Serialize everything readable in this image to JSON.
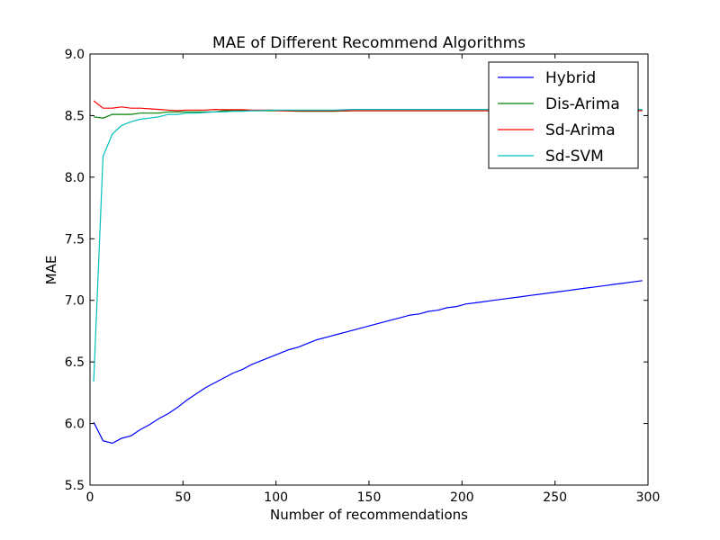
{
  "chart_data": {
    "type": "line",
    "title": "MAE of Different Recommend Algorithms",
    "xlabel": "Number of recommendations",
    "ylabel": "MAE",
    "xlim": [
      0,
      300
    ],
    "ylim": [
      5.5,
      9.0
    ],
    "xticks": [
      0,
      50,
      100,
      150,
      200,
      250,
      300
    ],
    "xtick_labels": [
      "0",
      "50",
      "100",
      "150",
      "200",
      "250",
      "300"
    ],
    "yticks": [
      5.5,
      6.0,
      6.5,
      7.0,
      7.5,
      8.0,
      8.5,
      9.0
    ],
    "ytick_labels": [
      "5.5",
      "6.0",
      "6.5",
      "7.0",
      "7.5",
      "8.0",
      "8.5",
      "9.0"
    ],
    "grid": false,
    "legend_position": "top-right",
    "series": [
      {
        "name": "Hybrid",
        "color": "#0000ff",
        "x": [
          2,
          7,
          12,
          17,
          22,
          27,
          32,
          37,
          42,
          47,
          52,
          57,
          62,
          67,
          72,
          77,
          82,
          87,
          92,
          97,
          102,
          107,
          112,
          117,
          122,
          127,
          132,
          137,
          142,
          147,
          152,
          157,
          162,
          167,
          172,
          177,
          182,
          187,
          192,
          197,
          202,
          207,
          212,
          217,
          222,
          227,
          232,
          237,
          242,
          247,
          252,
          257,
          262,
          267,
          272,
          277,
          282,
          287,
          292,
          297
        ],
        "y": [
          6.01,
          5.86,
          5.84,
          5.88,
          5.9,
          5.95,
          5.99,
          6.04,
          6.08,
          6.13,
          6.19,
          6.24,
          6.29,
          6.33,
          6.37,
          6.41,
          6.44,
          6.48,
          6.51,
          6.54,
          6.57,
          6.6,
          6.62,
          6.65,
          6.68,
          6.7,
          6.72,
          6.74,
          6.76,
          6.78,
          6.8,
          6.82,
          6.84,
          6.86,
          6.88,
          6.89,
          6.91,
          6.92,
          6.94,
          6.95,
          6.97,
          6.98,
          6.99,
          7.0,
          7.01,
          7.02,
          7.03,
          7.04,
          7.05,
          7.06,
          7.07,
          7.08,
          7.09,
          7.1,
          7.11,
          7.12,
          7.13,
          7.14,
          7.15,
          7.16
        ]
      },
      {
        "name": "Dis-Arima",
        "color": "#008000",
        "x": [
          2,
          7,
          12,
          17,
          22,
          27,
          32,
          37,
          42,
          47,
          52,
          57,
          62,
          67,
          72,
          77,
          82,
          87,
          92,
          97,
          102,
          112,
          122,
          132,
          142,
          152,
          162,
          172,
          182,
          192,
          202,
          212,
          222,
          232,
          242,
          252,
          262,
          272,
          282,
          292,
          297
        ],
        "y": [
          8.49,
          8.48,
          8.51,
          8.51,
          8.51,
          8.52,
          8.52,
          8.52,
          8.53,
          8.53,
          8.53,
          8.53,
          8.53,
          8.53,
          8.54,
          8.54,
          8.54,
          8.54,
          8.54,
          8.54,
          8.54,
          8.535,
          8.535,
          8.535,
          8.54,
          8.54,
          8.54,
          8.54,
          8.54,
          8.54,
          8.54,
          8.54,
          8.54,
          8.54,
          8.54,
          8.54,
          8.54,
          8.54,
          8.54,
          8.54,
          8.54
        ]
      },
      {
        "name": "Sd-Arima",
        "color": "#ff0000",
        "x": [
          2,
          7,
          12,
          17,
          22,
          27,
          32,
          37,
          42,
          47,
          52,
          57,
          62,
          67,
          72,
          77,
          82,
          87,
          92,
          97,
          102,
          112,
          122,
          132,
          142,
          152,
          162,
          172,
          182,
          192,
          202,
          212,
          222,
          232,
          242,
          252,
          262,
          272,
          282,
          292,
          297
        ],
        "y": [
          8.62,
          8.56,
          8.56,
          8.57,
          8.56,
          8.56,
          8.555,
          8.55,
          8.545,
          8.54,
          8.545,
          8.545,
          8.545,
          8.55,
          8.548,
          8.548,
          8.548,
          8.545,
          8.545,
          8.545,
          8.54,
          8.54,
          8.54,
          8.54,
          8.54,
          8.54,
          8.54,
          8.54,
          8.54,
          8.54,
          8.54,
          8.54,
          8.54,
          8.54,
          8.54,
          8.54,
          8.54,
          8.54,
          8.54,
          8.54,
          8.54
        ]
      },
      {
        "name": "Sd-SVM",
        "color": "#00bfbf",
        "x": [
          2,
          7,
          12,
          17,
          22,
          27,
          32,
          37,
          42,
          47,
          52,
          57,
          62,
          67,
          72,
          77,
          82,
          87,
          92,
          97,
          102,
          112,
          122,
          132,
          142,
          152,
          162,
          172,
          182,
          192,
          202,
          212,
          222,
          232,
          242,
          252,
          262,
          272,
          282,
          292,
          297
        ],
        "y": [
          6.34,
          8.17,
          8.35,
          8.42,
          8.45,
          8.47,
          8.48,
          8.49,
          8.51,
          8.51,
          8.52,
          8.52,
          8.525,
          8.53,
          8.53,
          8.535,
          8.535,
          8.54,
          8.54,
          8.545,
          8.545,
          8.545,
          8.545,
          8.545,
          8.55,
          8.55,
          8.55,
          8.55,
          8.55,
          8.55,
          8.55,
          8.55,
          8.55,
          8.55,
          8.55,
          8.55,
          8.55,
          8.55,
          8.55,
          8.55,
          8.55
        ]
      }
    ]
  }
}
